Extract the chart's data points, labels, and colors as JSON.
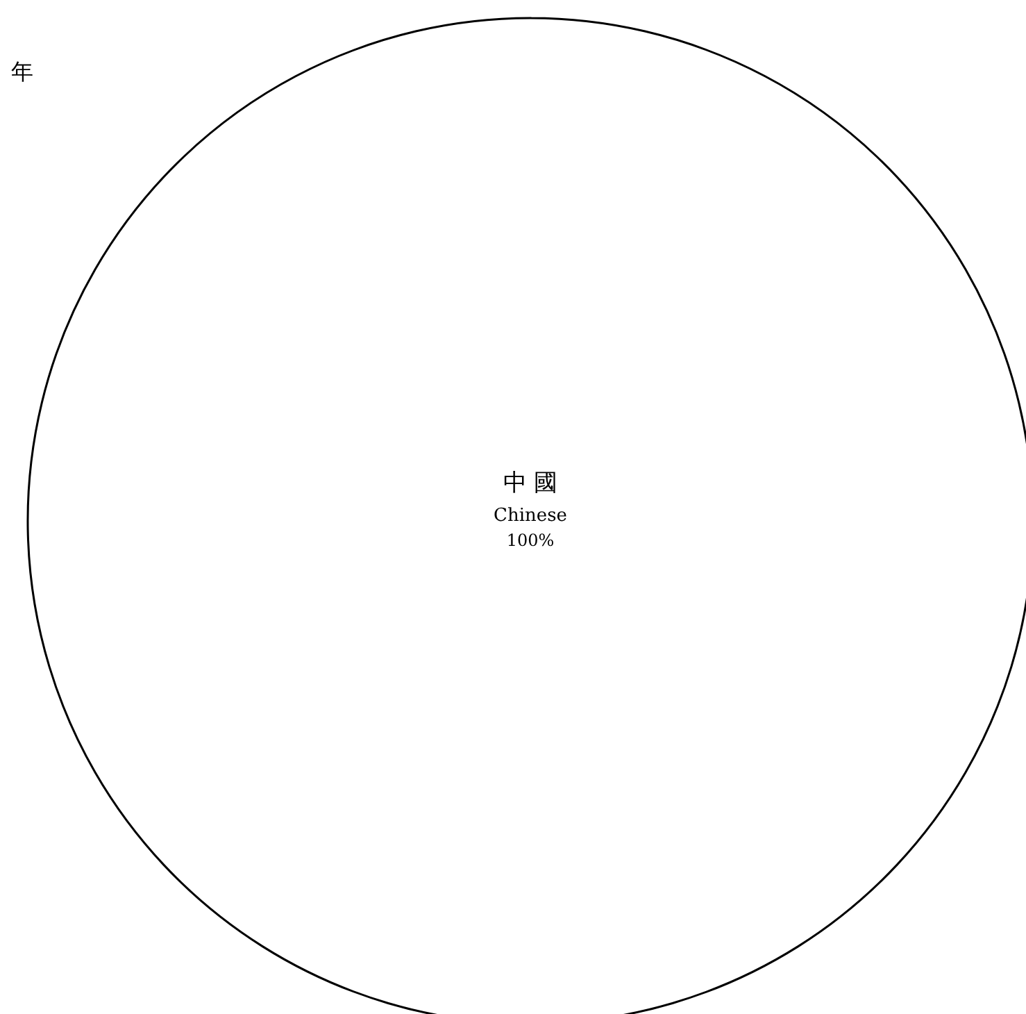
{
  "chart_data": {
    "type": "pie",
    "annotations": [
      "年"
    ],
    "categories": [
      "中 國 Chinese"
    ],
    "values": [
      100
    ],
    "colors": [
      "#ffffff"
    ],
    "value_labels": [
      "100%"
    ],
    "legend": false
  }
}
